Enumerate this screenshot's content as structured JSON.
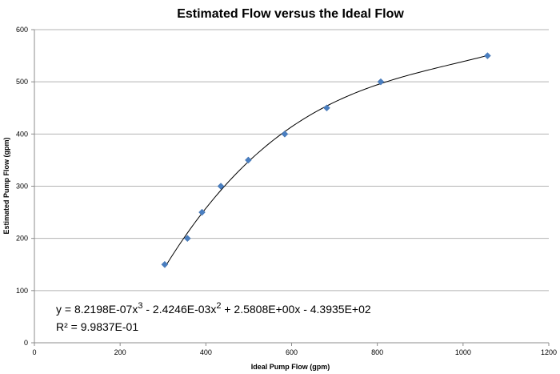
{
  "chart_data": {
    "type": "scatter",
    "title": "Estimated Flow versus the Ideal Flow",
    "xlabel": "Ideal Pump Flow (gpm)",
    "ylabel": "Estimated Pump Flow (gpm)",
    "xlim": [
      0,
      1200
    ],
    "ylim": [
      0,
      600
    ],
    "x_ticks": [
      0,
      200,
      400,
      600,
      800,
      1000,
      1200
    ],
    "y_ticks": [
      0,
      100,
      200,
      300,
      400,
      500,
      600
    ],
    "grid": "horizontal",
    "legend": "none",
    "marker_color": "#4a7fc1",
    "series": [
      {
        "x": [
          304,
          357,
          391,
          435,
          499,
          584,
          682,
          808,
          1057
        ],
        "y": [
          150,
          200,
          250,
          300,
          350,
          400,
          450,
          500,
          550
        ]
      }
    ],
    "trendline": {
      "type": "polynomial",
      "order": 3,
      "coefficients": [
        8.2198e-07,
        -0.0024246,
        2.5808,
        -439.35
      ],
      "equation_parts": [
        "y = 8.2198E-07x",
        "3",
        " - 2.4246E-03x",
        "2",
        " + 2.5808E+00x - 4.3935E+02"
      ],
      "r2_label": "R² = 9.9837E-01"
    }
  }
}
